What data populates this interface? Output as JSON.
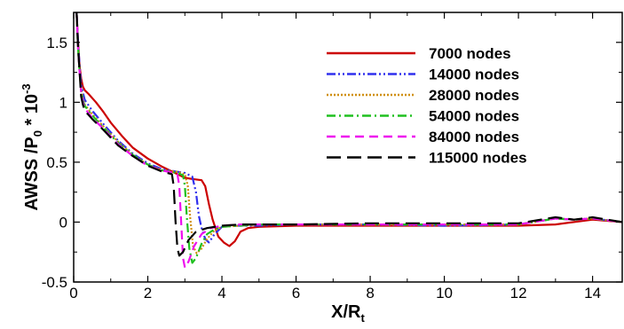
{
  "chart_data": {
    "type": "line",
    "title": "",
    "xlabel": "X/R",
    "xlabel_sub": "t",
    "ylabel": "AWSS /P",
    "ylabel_sub": "0",
    "ylabel_suffix": " * 10",
    "ylabel_sup": "-3",
    "xlim": [
      0,
      14.8
    ],
    "ylim": [
      -0.5,
      1.75
    ],
    "x_ticks": [
      0,
      2,
      4,
      6,
      8,
      10,
      12,
      14
    ],
    "x_tick_labels": [
      "0",
      "2",
      "4",
      "6",
      "8",
      "10",
      "12",
      "14"
    ],
    "y_ticks": [
      -0.5,
      0,
      0.5,
      1,
      1.5
    ],
    "y_tick_labels": [
      "-0.5",
      "0",
      "0.5",
      "1",
      "1.5"
    ],
    "grid": false,
    "legend_position": "top-right",
    "series": [
      {
        "name": "7000 nodes",
        "color": "#cc0000",
        "dash": "solid",
        "x": [
          0.08,
          0.12,
          0.16,
          0.2,
          0.25,
          0.3,
          0.4,
          0.6,
          0.8,
          1.0,
          1.3,
          1.6,
          2.0,
          2.4,
          2.8,
          3.0,
          3.2,
          3.45,
          3.55,
          3.65,
          3.75,
          3.9,
          4.05,
          4.2,
          4.35,
          4.5,
          4.7,
          5.0,
          6.0,
          8.0,
          10.0,
          12.0,
          13.0,
          14.0,
          14.8
        ],
        "y": [
          1.75,
          1.5,
          1.3,
          1.2,
          1.13,
          1.1,
          1.07,
          1.0,
          0.92,
          0.83,
          0.72,
          0.62,
          0.53,
          0.46,
          0.4,
          0.37,
          0.36,
          0.35,
          0.3,
          0.15,
          0.02,
          -0.12,
          -0.17,
          -0.2,
          -0.16,
          -0.08,
          -0.05,
          -0.04,
          -0.03,
          -0.03,
          -0.03,
          -0.03,
          -0.02,
          0.02,
          0.0
        ]
      },
      {
        "name": "14000 nodes",
        "color": "#3030ee",
        "dash": "dashdotdot",
        "x": [
          0.08,
          0.12,
          0.16,
          0.2,
          0.25,
          0.3,
          0.5,
          0.8,
          1.2,
          1.6,
          2.0,
          2.4,
          2.8,
          3.0,
          3.2,
          3.3,
          3.38,
          3.45,
          3.55,
          3.65,
          3.8,
          4.0,
          4.2,
          4.5,
          5.0,
          6.0,
          8.0,
          10.0,
          12.0,
          13.0,
          13.5,
          14.0,
          14.8
        ],
        "y": [
          1.75,
          1.5,
          1.3,
          1.15,
          1.08,
          1.02,
          0.93,
          0.82,
          0.68,
          0.57,
          0.49,
          0.44,
          0.42,
          0.41,
          0.38,
          0.25,
          0.05,
          -0.05,
          -0.14,
          -0.17,
          -0.1,
          -0.04,
          -0.03,
          -0.03,
          -0.03,
          -0.02,
          -0.02,
          -0.03,
          -0.02,
          0.03,
          0.02,
          0.03,
          0.0
        ]
      },
      {
        "name": "28000 nodes",
        "color": "#d09010",
        "dash": "dotted",
        "x": [
          0.08,
          0.12,
          0.16,
          0.2,
          0.25,
          0.3,
          0.5,
          0.8,
          1.2,
          1.6,
          2.0,
          2.4,
          2.8,
          3.0,
          3.08,
          3.14,
          3.22,
          3.32,
          3.45,
          3.6,
          3.8,
          4.0,
          4.5,
          5.0,
          6.0,
          8.0,
          10.0,
          12.0,
          13.0,
          13.5,
          14.0,
          14.8
        ],
        "y": [
          1.75,
          1.45,
          1.25,
          1.1,
          1.03,
          0.98,
          0.9,
          0.8,
          0.67,
          0.56,
          0.48,
          0.43,
          0.42,
          0.4,
          0.3,
          0.05,
          -0.2,
          -0.26,
          -0.22,
          -0.14,
          -0.07,
          -0.04,
          -0.03,
          -0.02,
          -0.02,
          -0.02,
          -0.02,
          -0.02,
          0.03,
          0.02,
          0.03,
          0.0
        ]
      },
      {
        "name": "54000 nodes",
        "color": "#20c020",
        "dash": "dashdot",
        "x": [
          0.08,
          0.12,
          0.16,
          0.2,
          0.25,
          0.3,
          0.5,
          0.8,
          1.2,
          1.6,
          2.0,
          2.4,
          2.8,
          2.95,
          3.0,
          3.05,
          3.12,
          3.2,
          3.3,
          3.45,
          3.6,
          3.8,
          4.0,
          4.5,
          5.0,
          6.0,
          8.0,
          10.0,
          12.0,
          13.0,
          13.5,
          14.0,
          14.8
        ],
        "y": [
          1.75,
          1.45,
          1.25,
          1.1,
          1.02,
          0.97,
          0.89,
          0.79,
          0.66,
          0.56,
          0.48,
          0.43,
          0.41,
          0.39,
          0.3,
          0.05,
          -0.22,
          -0.34,
          -0.3,
          -0.18,
          -0.1,
          -0.06,
          -0.04,
          -0.03,
          -0.02,
          -0.02,
          -0.02,
          -0.02,
          -0.02,
          0.03,
          0.02,
          0.03,
          0.0
        ]
      },
      {
        "name": "84000 nodes",
        "color": "#ee10ee",
        "dash": "dashed",
        "x": [
          0.08,
          0.12,
          0.16,
          0.2,
          0.25,
          0.3,
          0.5,
          0.8,
          1.2,
          1.6,
          2.0,
          2.4,
          2.7,
          2.8,
          2.85,
          2.9,
          2.95,
          3.0,
          3.1,
          3.25,
          3.45,
          3.7,
          4.0,
          4.5,
          5.0,
          6.0,
          8.0,
          10.0,
          12.0,
          13.0,
          13.5,
          14.0,
          14.8
        ],
        "y": [
          1.75,
          1.45,
          1.25,
          1.08,
          1.0,
          0.95,
          0.87,
          0.78,
          0.65,
          0.55,
          0.47,
          0.43,
          0.41,
          0.4,
          0.3,
          0.0,
          -0.3,
          -0.38,
          -0.33,
          -0.2,
          -0.1,
          -0.05,
          -0.03,
          -0.02,
          -0.02,
          -0.02,
          -0.02,
          -0.02,
          -0.02,
          0.03,
          0.02,
          0.03,
          0.0
        ]
      },
      {
        "name": "115000 nodes",
        "color": "#000000",
        "dash": "longdash",
        "x": [
          0.08,
          0.12,
          0.16,
          0.2,
          0.25,
          0.3,
          0.5,
          0.8,
          1.2,
          1.6,
          2.0,
          2.4,
          2.65,
          2.7,
          2.75,
          2.8,
          2.85,
          2.95,
          3.1,
          3.3,
          3.6,
          4.0,
          4.5,
          5.0,
          6.0,
          8.0,
          10.0,
          12.0,
          13.0,
          13.5,
          14.0,
          14.8
        ],
        "y": [
          1.75,
          1.45,
          1.25,
          1.05,
          0.98,
          0.93,
          0.86,
          0.77,
          0.64,
          0.55,
          0.47,
          0.42,
          0.4,
          0.3,
          0.0,
          -0.22,
          -0.28,
          -0.25,
          -0.15,
          -0.08,
          -0.05,
          -0.03,
          -0.02,
          -0.02,
          -0.02,
          -0.01,
          -0.01,
          -0.01,
          0.04,
          0.02,
          0.04,
          0.0
        ]
      }
    ]
  }
}
